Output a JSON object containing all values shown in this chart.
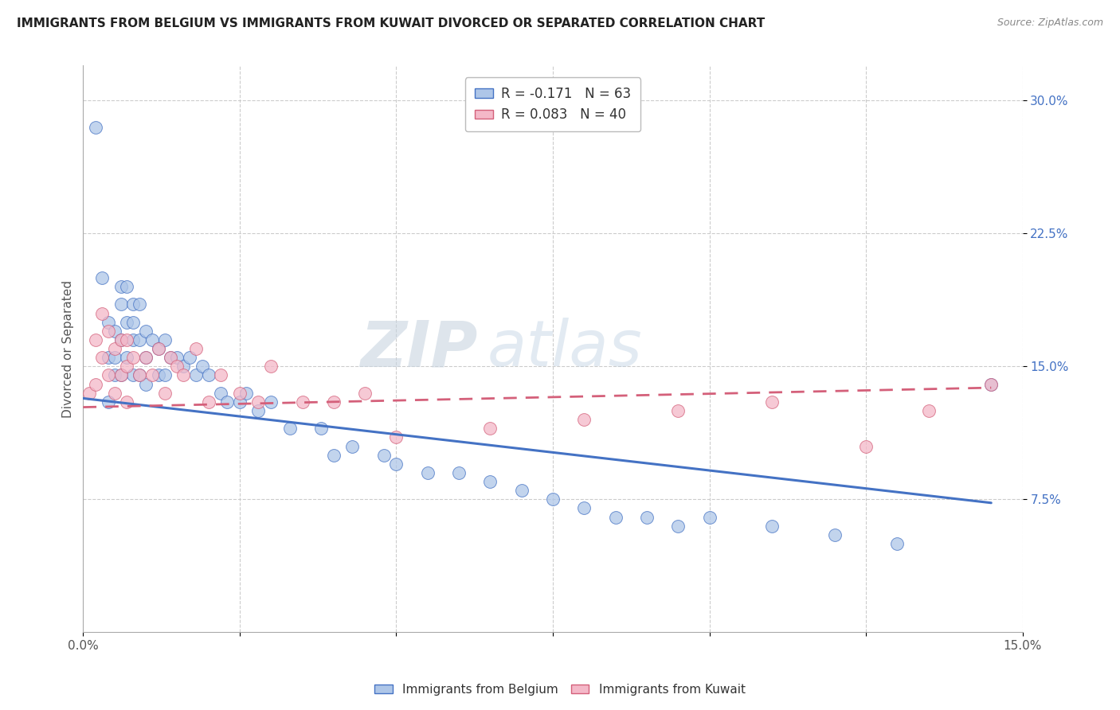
{
  "title": "IMMIGRANTS FROM BELGIUM VS IMMIGRANTS FROM KUWAIT DIVORCED OR SEPARATED CORRELATION CHART",
  "source": "Source: ZipAtlas.com",
  "ylabel": "Divorced or Separated",
  "xlim": [
    0.0,
    0.15
  ],
  "ylim": [
    0.0,
    0.32
  ],
  "x_ticks": [
    0.0,
    0.025,
    0.05,
    0.075,
    0.1,
    0.125,
    0.15
  ],
  "y_ticks": [
    0.075,
    0.15,
    0.225,
    0.3
  ],
  "y_tick_labels": [
    "7.5%",
    "15.0%",
    "22.5%",
    "30.0%"
  ],
  "legend_entry1": "R = -0.171   N = 63",
  "legend_entry2": "R = 0.083   N = 40",
  "legend_label1": "Immigrants from Belgium",
  "legend_label2": "Immigrants from Kuwait",
  "color_belgium": "#aec6e8",
  "color_kuwait": "#f4b8c8",
  "line_color_belgium": "#4472c4",
  "line_color_kuwait": "#d4607a",
  "watermark_zip": "ZIP",
  "watermark_atlas": "atlas",
  "belgium_scatter_x": [
    0.002,
    0.003,
    0.004,
    0.004,
    0.004,
    0.005,
    0.005,
    0.005,
    0.006,
    0.006,
    0.006,
    0.006,
    0.007,
    0.007,
    0.007,
    0.008,
    0.008,
    0.008,
    0.008,
    0.009,
    0.009,
    0.009,
    0.01,
    0.01,
    0.01,
    0.011,
    0.012,
    0.012,
    0.013,
    0.013,
    0.014,
    0.015,
    0.016,
    0.017,
    0.018,
    0.019,
    0.02,
    0.022,
    0.023,
    0.025,
    0.026,
    0.028,
    0.03,
    0.033,
    0.038,
    0.04,
    0.043,
    0.048,
    0.05,
    0.055,
    0.06,
    0.065,
    0.07,
    0.075,
    0.08,
    0.085,
    0.09,
    0.095,
    0.1,
    0.11,
    0.12,
    0.13,
    0.145
  ],
  "belgium_scatter_y": [
    0.285,
    0.2,
    0.175,
    0.155,
    0.13,
    0.17,
    0.155,
    0.145,
    0.195,
    0.185,
    0.165,
    0.145,
    0.195,
    0.175,
    0.155,
    0.185,
    0.175,
    0.165,
    0.145,
    0.185,
    0.165,
    0.145,
    0.17,
    0.155,
    0.14,
    0.165,
    0.16,
    0.145,
    0.165,
    0.145,
    0.155,
    0.155,
    0.15,
    0.155,
    0.145,
    0.15,
    0.145,
    0.135,
    0.13,
    0.13,
    0.135,
    0.125,
    0.13,
    0.115,
    0.115,
    0.1,
    0.105,
    0.1,
    0.095,
    0.09,
    0.09,
    0.085,
    0.08,
    0.075,
    0.07,
    0.065,
    0.065,
    0.06,
    0.065,
    0.06,
    0.055,
    0.05,
    0.14
  ],
  "kuwait_scatter_x": [
    0.001,
    0.002,
    0.002,
    0.003,
    0.003,
    0.004,
    0.004,
    0.005,
    0.005,
    0.006,
    0.006,
    0.007,
    0.007,
    0.007,
    0.008,
    0.009,
    0.01,
    0.011,
    0.012,
    0.013,
    0.014,
    0.015,
    0.016,
    0.018,
    0.02,
    0.022,
    0.025,
    0.028,
    0.03,
    0.035,
    0.04,
    0.045,
    0.05,
    0.065,
    0.08,
    0.095,
    0.11,
    0.125,
    0.135,
    0.145
  ],
  "kuwait_scatter_y": [
    0.135,
    0.165,
    0.14,
    0.18,
    0.155,
    0.17,
    0.145,
    0.16,
    0.135,
    0.165,
    0.145,
    0.165,
    0.15,
    0.13,
    0.155,
    0.145,
    0.155,
    0.145,
    0.16,
    0.135,
    0.155,
    0.15,
    0.145,
    0.16,
    0.13,
    0.145,
    0.135,
    0.13,
    0.15,
    0.13,
    0.13,
    0.135,
    0.11,
    0.115,
    0.12,
    0.125,
    0.13,
    0.105,
    0.125,
    0.14
  ],
  "belgium_line_x": [
    0.0,
    0.145
  ],
  "belgium_line_y": [
    0.132,
    0.073
  ],
  "kuwait_line_x": [
    0.0,
    0.145
  ],
  "kuwait_line_y": [
    0.127,
    0.138
  ]
}
